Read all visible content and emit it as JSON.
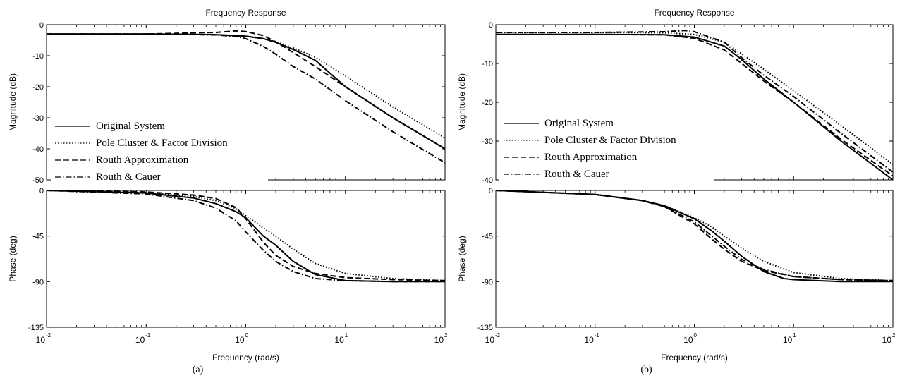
{
  "chart_data": [
    {
      "type": "line",
      "panel_label": "(a)",
      "title": "Frequency Response",
      "xlabel": "Frequency  (rad/s)",
      "x_scale": "log",
      "xlim": [
        0.01,
        100
      ],
      "x_ticks": [
        0.01,
        0.1,
        1,
        10,
        100
      ],
      "x_tick_labels": [
        {
          "base": "10",
          "exp": "-2"
        },
        {
          "base": "10",
          "exp": "-1"
        },
        {
          "base": "10",
          "exp": "0"
        },
        {
          "base": "10",
          "exp": "1"
        },
        {
          "base": "10",
          "exp": "2"
        }
      ],
      "legend_location": "lower-left of magnitude plot",
      "magnitude": {
        "ylabel": "Magnitude (dB)",
        "ylim": [
          -50,
          0
        ],
        "y_ticks": [
          0,
          -10,
          -20,
          -30,
          -40,
          -50
        ],
        "y_tick_labels": [
          "0",
          "-10",
          "-20",
          "-30",
          "-40",
          "-50"
        ]
      },
      "phase": {
        "ylabel": "Phase (deg)",
        "ylim": [
          -135,
          0
        ],
        "y_ticks": [
          0,
          -45,
          -90,
          -135
        ],
        "y_tick_labels": [
          "0",
          "-45",
          "-90",
          "-135"
        ]
      },
      "series": [
        {
          "name": "Original System",
          "dash": "solid",
          "magnitude": {
            "x": [
              0.01,
              0.1,
              0.5,
              1,
              1.5,
              2,
              3,
              5,
              10,
              30,
              100
            ],
            "y": [
              -3,
              -3,
              -3.2,
              -3.7,
              -4.5,
              -5.7,
              -8,
              -11.5,
              -20,
              -30,
              -40
            ]
          },
          "phase": {
            "x": [
              0.01,
              0.1,
              0.3,
              0.5,
              0.8,
              1,
              1.5,
              2,
              3,
              5,
              10,
              30,
              100
            ],
            "y": [
              0,
              -2.5,
              -7.5,
              -13,
              -21,
              -27,
              -45,
              -54,
              -70,
              -83,
              -89,
              -90,
              -90
            ]
          }
        },
        {
          "name": "Pole Cluster & Factor Division",
          "dash": "dotted",
          "magnitude": {
            "x": [
              0.01,
              0.1,
              0.5,
              1,
              1.5,
              2,
              3,
              5,
              10,
              30,
              100
            ],
            "y": [
              -3,
              -3,
              -3.2,
              -3.8,
              -4.5,
              -5.5,
              -7.5,
              -10.5,
              -16.5,
              -26.5,
              -36.5
            ]
          },
          "phase": {
            "x": [
              0.01,
              0.1,
              0.3,
              0.5,
              0.8,
              1,
              1.5,
              2,
              3,
              5,
              10,
              30,
              100
            ],
            "y": [
              0,
              -2,
              -6,
              -10,
              -18,
              -25,
              -37,
              -45,
              -58,
              -72,
              -82,
              -87,
              -89
            ]
          }
        },
        {
          "name": "Routh Approximation",
          "dash": "dashed",
          "magnitude": {
            "x": [
              0.01,
              0.1,
              0.5,
              0.8,
              1,
              1.5,
              2,
              3,
              5,
              10,
              30,
              100
            ],
            "y": [
              -3,
              -3,
              -2.5,
              -2,
              -2.2,
              -3.5,
              -5.5,
              -9,
              -13.5,
              -20,
              -30,
              -40
            ]
          },
          "phase": {
            "x": [
              0.01,
              0.1,
              0.3,
              0.5,
              0.8,
              1,
              1.5,
              2,
              3,
              5,
              10,
              30,
              100
            ],
            "y": [
              0,
              -1.5,
              -4.5,
              -8,
              -17,
              -28,
              -51,
              -64,
              -75,
              -82,
              -86,
              -88,
              -89
            ]
          }
        },
        {
          "name": "Routh & Cauer",
          "dash": "dashdot",
          "magnitude": {
            "x": [
              0.01,
              0.1,
              0.5,
              0.8,
              1,
              1.5,
              2,
              3,
              5,
              10,
              30,
              100
            ],
            "y": [
              -3,
              -3,
              -3.3,
              -3.8,
              -4.5,
              -7,
              -9.5,
              -13.5,
              -17.5,
              -24.5,
              -34.5,
              -44.5
            ]
          },
          "phase": {
            "x": [
              0.01,
              0.1,
              0.3,
              0.5,
              0.8,
              1,
              1.5,
              2,
              3,
              5,
              10,
              30,
              100
            ],
            "y": [
              0,
              -3.5,
              -10,
              -17.5,
              -30,
              -41,
              -59,
              -70,
              -80,
              -87,
              -89,
              -90,
              -90
            ]
          }
        }
      ]
    },
    {
      "type": "line",
      "panel_label": "(b)",
      "title": "Frequency Response",
      "xlabel": "Frequency  (rad/s)",
      "x_scale": "log",
      "xlim": [
        0.01,
        100
      ],
      "x_ticks": [
        0.01,
        0.1,
        1,
        10,
        100
      ],
      "x_tick_labels": [
        {
          "base": "10",
          "exp": "-2"
        },
        {
          "base": "10",
          "exp": "-1"
        },
        {
          "base": "10",
          "exp": "0"
        },
        {
          "base": "10",
          "exp": "1"
        },
        {
          "base": "10",
          "exp": "2"
        }
      ],
      "legend_location": "lower-left of magnitude plot",
      "magnitude": {
        "ylabel": "Magnitude (dB)",
        "ylim": [
          -40,
          0
        ],
        "y_ticks": [
          0,
          -10,
          -20,
          -30,
          -40
        ],
        "y_tick_labels": [
          "0",
          "-10",
          "-20",
          "-30",
          "-40"
        ]
      },
      "phase": {
        "ylabel": "Phase (deg)",
        "ylim": [
          -135,
          0
        ],
        "y_ticks": [
          0,
          -45,
          -90,
          -135
        ],
        "y_tick_labels": [
          "0",
          "-45",
          "-90",
          "-135"
        ]
      },
      "series": [
        {
          "name": "Original System",
          "dash": "solid",
          "magnitude": {
            "x": [
              0.01,
              0.1,
              0.5,
              1,
              2,
              3,
              5,
              10,
              30,
              100
            ],
            "y": [
              -2.5,
              -2.5,
              -2.6,
              -3.2,
              -5.5,
              -9,
              -14,
              -20,
              -30,
              -40
            ]
          },
          "phase": {
            "x": [
              0.01,
              0.1,
              0.3,
              0.5,
              1,
              1.5,
              2,
              3,
              5,
              8,
              10,
              30,
              100
            ],
            "y": [
              0,
              -4,
              -10,
              -15,
              -28,
              -40,
              -50,
              -65,
              -80,
              -87,
              -88,
              -90,
              -90
            ]
          }
        },
        {
          "name": "Pole Cluster & Factor Division",
          "dash": "dotted",
          "magnitude": {
            "x": [
              0.01,
              0.1,
              0.5,
              1,
              2,
              3,
              5,
              10,
              30,
              100
            ],
            "y": [
              -2,
              -2,
              -2.1,
              -2.5,
              -4.5,
              -7.5,
              -11.5,
              -17,
              -26,
              -36
            ]
          },
          "phase": {
            "x": [
              0.01,
              0.1,
              0.3,
              0.5,
              1,
              1.5,
              2,
              3,
              5,
              10,
              30,
              100
            ],
            "y": [
              0,
              -4,
              -10,
              -15,
              -27,
              -36,
              -45,
              -57,
              -70,
              -81,
              -87,
              -89
            ]
          }
        },
        {
          "name": "Routh Approximation",
          "dash": "dashed",
          "magnitude": {
            "x": [
              0.01,
              0.1,
              0.5,
              1,
              2,
              3,
              5,
              10,
              30,
              100
            ],
            "y": [
              -2.5,
              -2.5,
              -2.6,
              -3.5,
              -6.5,
              -10,
              -14.5,
              -20,
              -29.5,
              -39
            ]
          },
          "phase": {
            "x": [
              0.01,
              0.1,
              0.3,
              0.5,
              1,
              1.5,
              2,
              3,
              5,
              10,
              30,
              100
            ],
            "y": [
              0,
              -4,
              -10,
              -16,
              -33,
              -48,
              -58,
              -70,
              -79,
              -85,
              -88,
              -89
            ]
          }
        },
        {
          "name": "Routh & Cauer",
          "dash": "dashdot",
          "magnitude": {
            "x": [
              0.01,
              0.1,
              0.5,
              0.8,
              1,
              2,
              3,
              5,
              10,
              30,
              100
            ],
            "y": [
              -2,
              -2,
              -1.8,
              -1.5,
              -1.8,
              -4.5,
              -8.5,
              -13,
              -18.5,
              -28,
              -38
            ]
          },
          "phase": {
            "x": [
              0.01,
              0.1,
              0.3,
              0.5,
              1,
              1.5,
              2,
              3,
              5,
              10,
              30,
              100
            ],
            "y": [
              0,
              -4,
              -10,
              -16,
              -31,
              -45,
              -55,
              -68,
              -78,
              -85,
              -88,
              -89
            ]
          }
        }
      ]
    }
  ]
}
